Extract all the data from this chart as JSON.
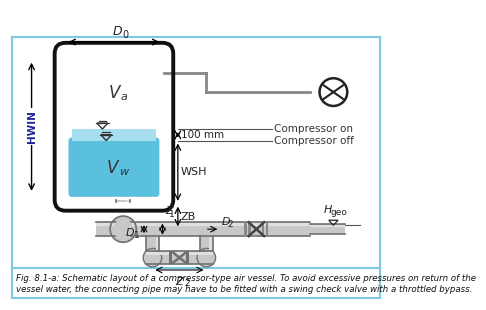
{
  "bg_color": "#ffffff",
  "border_color": "#7ec8e3",
  "tank_color_water": "#5bbfde",
  "tank_color_water_light": "#a8dff0",
  "tank_outline_color": "#1a1a1a",
  "text_color": "#1a1a1a",
  "blue_text_color": "#2255aa",
  "pipe_fill": "#c8c8c8",
  "pipe_dark": "#888888",
  "pipe_light": "#eeeeee",
  "pipe_mid": "#aaaaaa",
  "title_text": "Fig. 8.1-a: Schematic layout of a compressor-type air vessel. To avoid excessive pressures on return of the vessel water, the connecting pipe may have to be fitted with a swing check valve with a throttled bypass.",
  "compressor_on_text": "Compressor on",
  "compressor_off_text": "Compressor off",
  "wsh_text": "WSH",
  "zb_text": "ZB",
  "hwin_text": "HWIN",
  "d0_text": "D",
  "d0_sub": "0",
  "va_text": "V",
  "va_sub": "a",
  "vw_text": "V",
  "vw_sub": "w",
  "z1_text": "Z",
  "z1_sub": "1",
  "z2_text": "Z",
  "z2_sub": "2",
  "d1_text": "D",
  "d1_sub": "1",
  "d2_text": "D",
  "d2_sub": "2",
  "hgeo_text": "H",
  "hgeo_sub": "geo",
  "mm100_text": "100 mm"
}
